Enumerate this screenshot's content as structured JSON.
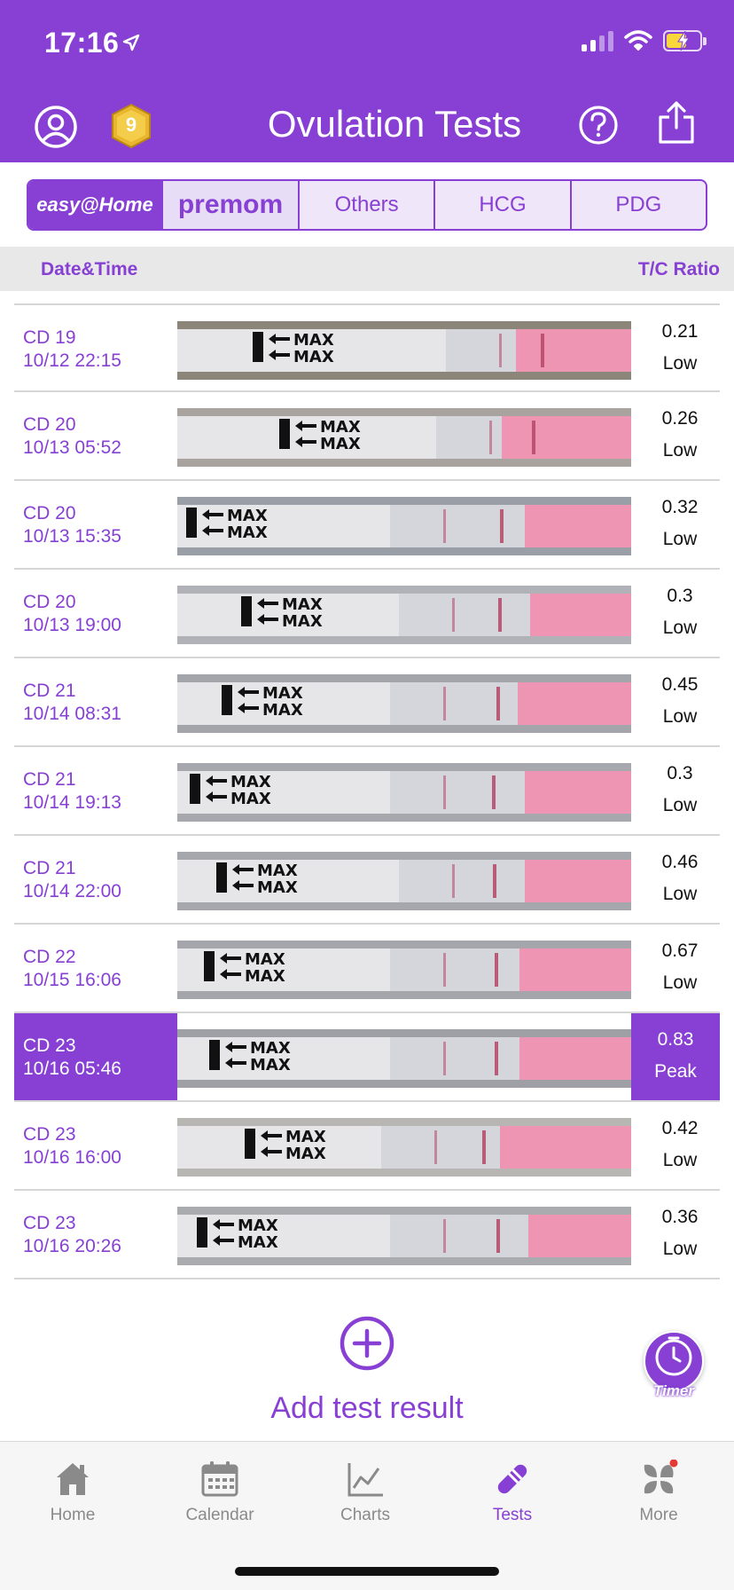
{
  "status_bar": {
    "time": "17:16"
  },
  "header": {
    "title": "Ovulation Tests",
    "badge_level": "9"
  },
  "brand_tabs": [
    {
      "label": "easy@Home"
    },
    {
      "label": "premom"
    },
    {
      "label": "Others"
    },
    {
      "label": "HCG"
    },
    {
      "label": "PDG"
    }
  ],
  "columns": {
    "date": "Date&Time",
    "ratio": "T/C Ratio"
  },
  "tests": [
    {
      "cd": "CD 19",
      "datetime": "10/12 22:15",
      "ratio": "0.21",
      "level": "Low"
    },
    {
      "cd": "CD 20",
      "datetime": "10/13 05:52",
      "ratio": "0.26",
      "level": "Low"
    },
    {
      "cd": "CD 20",
      "datetime": "10/13 15:35",
      "ratio": "0.32",
      "level": "Low"
    },
    {
      "cd": "CD 20",
      "datetime": "10/13 19:00",
      "ratio": "0.3",
      "level": "Low"
    },
    {
      "cd": "CD 21",
      "datetime": "10/14 08:31",
      "ratio": "0.45",
      "level": "Low"
    },
    {
      "cd": "CD 21",
      "datetime": "10/14 19:13",
      "ratio": "0.3",
      "level": "Low"
    },
    {
      "cd": "CD 21",
      "datetime": "10/14 22:00",
      "ratio": "0.46",
      "level": "Low"
    },
    {
      "cd": "CD 22",
      "datetime": "10/15 16:06",
      "ratio": "0.67",
      "level": "Low"
    },
    {
      "cd": "CD 23",
      "datetime": "10/16 05:46",
      "ratio": "0.83",
      "level": "Peak"
    },
    {
      "cd": "CD 23",
      "datetime": "10/16 16:00",
      "ratio": "0.42",
      "level": "Low"
    },
    {
      "cd": "CD 23",
      "datetime": "10/16 20:26",
      "ratio": "0.36",
      "level": "Low"
    }
  ],
  "strip_text": "MAX",
  "add": {
    "label": "Add test result"
  },
  "timer": {
    "label": "Timer"
  },
  "nav": [
    {
      "label": "Home"
    },
    {
      "label": "Calendar"
    },
    {
      "label": "Charts"
    },
    {
      "label": "Tests"
    },
    {
      "label": "More"
    }
  ],
  "colors": {
    "accent": "#8740D3",
    "strip_pink": "#EE95B4",
    "test_line": "#B44766"
  }
}
